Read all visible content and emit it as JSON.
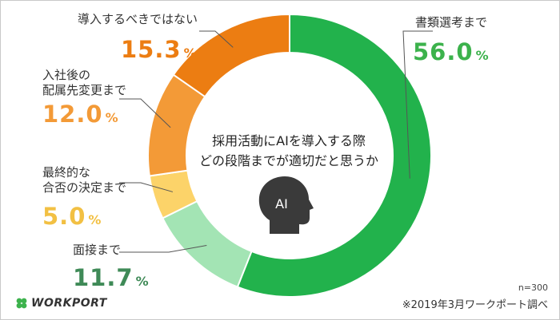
{
  "chart_data": {
    "type": "pie",
    "donut": true,
    "title": "採用活動にAIを導入する際\nどの段階までが適切だと思うか",
    "unit": "%",
    "center_icon": "head-ai-icon",
    "center_icon_text": "AI",
    "slices": [
      {
        "label": "書類選考まで",
        "value": 56.0,
        "color": "#22b24c"
      },
      {
        "label": "面接まで",
        "value": 11.7,
        "color": "#a3e4b4"
      },
      {
        "label": "最終的な\n合否の決定まで",
        "value": 5.0,
        "color": "#fcd369"
      },
      {
        "label": "入社後の\n配属先変更まで",
        "value": 12.0,
        "color": "#f39a37"
      },
      {
        "label": "導入するべきではない",
        "value": 15.3,
        "color": "#ec7d12"
      }
    ],
    "percent_label_colors": [
      "#3cb24c",
      "#3f8a57",
      "#f2c043",
      "#f39a37",
      "#ec7d12"
    ]
  },
  "footer": {
    "sample_size": "n=300",
    "source": "※2019年3月ワークポート調べ"
  },
  "logo": {
    "text": "WORKPORT",
    "icon": "clover-icon",
    "icon_color": "#3cb24c"
  }
}
